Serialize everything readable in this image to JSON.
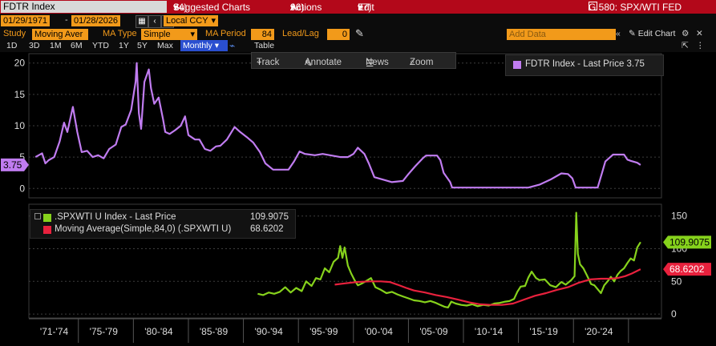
{
  "topbar": {
    "function_box": "FDTR Index",
    "menu1_num": "94)",
    "menu1": "Suggested Charts",
    "menu2_num": "96)",
    "menu2": "Actions",
    "menu3_num": "97)",
    "menu3": "Edit",
    "right_title": "G 580: SPX/WTI FED"
  },
  "controls": {
    "start_date": "01/29/1971",
    "end_date": "01/28/2026",
    "currency": "Local CCY",
    "study_label": "Study",
    "study_value": "Moving Aver",
    "ma_type_label": "MA Type",
    "ma_type_value": "Simple",
    "ma_period_label": "MA Period",
    "ma_period_value": "84",
    "leadlag_label": "Lead/Lag",
    "leadlag_value": "0",
    "add_data_placeholder": "Add Data",
    "edit_chart": "Edit Chart"
  },
  "ranges": {
    "items": [
      "1D",
      "3D",
      "1M",
      "6M",
      "YTD",
      "1Y",
      "5Y",
      "Max"
    ],
    "selected": "Monthly",
    "table": "Table"
  },
  "tools": {
    "track": "Track",
    "annotate": "Annotate",
    "news": "News",
    "zoom": "Zoom"
  },
  "colors": {
    "fdtr": "#c07cf0",
    "spxwti": "#86d21c",
    "ma": "#e8213d",
    "accent": "#f29a1a",
    "topbar": "#b3081a"
  },
  "chart_data": [
    {
      "type": "line",
      "series": [
        {
          "name": "FDTR Index - Last Price 3.75",
          "points": [
            [
              1971.1,
              5.0
            ],
            [
              1971.7,
              5.6
            ],
            [
              1972.0,
              4.0
            ],
            [
              1972.3,
              4.5
            ],
            [
              1972.8,
              5.0
            ],
            [
              1973.3,
              7.5
            ],
            [
              1973.7,
              10.5
            ],
            [
              1974.0,
              9.0
            ],
            [
              1974.5,
              13.0
            ],
            [
              1974.9,
              9.0
            ],
            [
              1975.3,
              5.8
            ],
            [
              1975.8,
              6.0
            ],
            [
              1976.3,
              5.0
            ],
            [
              1976.8,
              5.3
            ],
            [
              1977.3,
              4.8
            ],
            [
              1977.8,
              6.3
            ],
            [
              1978.4,
              7.0
            ],
            [
              1978.9,
              9.8
            ],
            [
              1979.3,
              10.2
            ],
            [
              1979.8,
              12.5
            ],
            [
              1980.2,
              17.0
            ],
            [
              1980.3,
              20.0
            ],
            [
              1980.5,
              12.0
            ],
            [
              1980.7,
              9.5
            ],
            [
              1981.0,
              17.0
            ],
            [
              1981.4,
              19.0
            ],
            [
              1981.6,
              16.0
            ],
            [
              1981.9,
              13.5
            ],
            [
              1982.3,
              14.5
            ],
            [
              1982.7,
              11.0
            ],
            [
              1982.9,
              9.0
            ],
            [
              1983.3,
              8.7
            ],
            [
              1983.8,
              9.3
            ],
            [
              1984.3,
              10.0
            ],
            [
              1984.7,
              11.5
            ],
            [
              1985.0,
              8.5
            ],
            [
              1985.6,
              7.8
            ],
            [
              1986.0,
              7.8
            ],
            [
              1986.5,
              6.3
            ],
            [
              1987.0,
              6.0
            ],
            [
              1987.5,
              6.7
            ],
            [
              1987.9,
              6.8
            ],
            [
              1988.5,
              7.8
            ],
            [
              1989.2,
              9.8
            ],
            [
              1989.7,
              9.0
            ],
            [
              1990.3,
              8.2
            ],
            [
              1990.9,
              7.3
            ],
            [
              1991.5,
              5.8
            ],
            [
              1992.0,
              4.0
            ],
            [
              1992.7,
              3.0
            ],
            [
              1993.5,
              3.0
            ],
            [
              1994.1,
              3.0
            ],
            [
              1994.6,
              4.3
            ],
            [
              1995.1,
              5.9
            ],
            [
              1995.6,
              5.5
            ],
            [
              1996.5,
              5.3
            ],
            [
              1997.2,
              5.5
            ],
            [
              1998.8,
              5.0
            ],
            [
              1999.5,
              5.0
            ],
            [
              2000.0,
              5.5
            ],
            [
              2000.4,
              6.5
            ],
            [
              2001.0,
              5.5
            ],
            [
              2001.4,
              4.0
            ],
            [
              2001.9,
              1.8
            ],
            [
              2002.9,
              1.3
            ],
            [
              2003.5,
              1.0
            ],
            [
              2004.5,
              1.2
            ],
            [
              2005.0,
              2.3
            ],
            [
              2005.6,
              3.5
            ],
            [
              2006.3,
              4.8
            ],
            [
              2006.6,
              5.25
            ],
            [
              2007.6,
              5.25
            ],
            [
              2007.9,
              4.5
            ],
            [
              2008.2,
              2.5
            ],
            [
              2008.8,
              1.0
            ],
            [
              2008.97,
              0.13
            ],
            [
              2015.9,
              0.13
            ],
            [
              2016.9,
              0.6
            ],
            [
              2017.9,
              1.4
            ],
            [
              2018.9,
              2.4
            ],
            [
              2019.5,
              2.3
            ],
            [
              2019.9,
              1.6
            ],
            [
              2020.2,
              0.13
            ],
            [
              2022.2,
              0.13
            ],
            [
              2022.6,
              2.5
            ],
            [
              2022.9,
              4.3
            ],
            [
              2023.6,
              5.4
            ],
            [
              2024.6,
              5.4
            ],
            [
              2024.9,
              4.6
            ],
            [
              2025.2,
              4.4
            ],
            [
              2025.8,
              4.1
            ],
            [
              2026.1,
              3.75
            ]
          ]
        }
      ],
      "last_price_label": "3.75",
      "ylim": [
        -1.5,
        21.5
      ],
      "yticks": [
        0,
        5,
        10,
        15,
        20
      ],
      "legend": "top-right",
      "grid": true
    },
    {
      "type": "line",
      "series": [
        {
          "name": ".SPXWTI U Index - Last Price",
          "last": "109.9075",
          "points": [
            [
              1991.3,
              31
            ],
            [
              1991.8,
              29
            ],
            [
              1992.3,
              33
            ],
            [
              1992.8,
              31
            ],
            [
              1993.3,
              34
            ],
            [
              1993.8,
              41
            ],
            [
              1994.3,
              33
            ],
            [
              1994.8,
              40
            ],
            [
              1995.3,
              35
            ],
            [
              1995.7,
              50
            ],
            [
              1996.2,
              43
            ],
            [
              1996.6,
              55
            ],
            [
              1997.0,
              53
            ],
            [
              1997.4,
              70
            ],
            [
              1997.8,
              64
            ],
            [
              1998.2,
              80
            ],
            [
              1998.6,
              86
            ],
            [
              1998.8,
              104
            ],
            [
              1999.0,
              86
            ],
            [
              1999.2,
              102
            ],
            [
              1999.5,
              74
            ],
            [
              1999.8,
              62
            ],
            [
              2000.1,
              52
            ],
            [
              2000.4,
              44
            ],
            [
              2000.8,
              47
            ],
            [
              2001.2,
              51
            ],
            [
              2001.6,
              55
            ],
            [
              2002.0,
              41
            ],
            [
              2002.5,
              37
            ],
            [
              2003.0,
              32
            ],
            [
              2003.5,
              34
            ],
            [
              2004.0,
              30
            ],
            [
              2004.5,
              27
            ],
            [
              2005.0,
              24
            ],
            [
              2005.5,
              21
            ],
            [
              2006.0,
              20
            ],
            [
              2006.5,
              18
            ],
            [
              2007.0,
              20
            ],
            [
              2007.5,
              17
            ],
            [
              2007.9,
              14
            ],
            [
              2008.3,
              11
            ],
            [
              2008.6,
              10
            ],
            [
              2008.9,
              19
            ],
            [
              2009.3,
              16
            ],
            [
              2009.8,
              14
            ],
            [
              2010.3,
              13
            ],
            [
              2010.8,
              15
            ],
            [
              2011.3,
              12
            ],
            [
              2011.8,
              14
            ],
            [
              2012.3,
              13
            ],
            [
              2012.8,
              16
            ],
            [
              2013.3,
              17
            ],
            [
              2013.8,
              19
            ],
            [
              2014.2,
              20
            ],
            [
              2014.6,
              23
            ],
            [
              2014.9,
              34
            ],
            [
              2015.2,
              42
            ],
            [
              2015.6,
              43
            ],
            [
              2015.9,
              56
            ],
            [
              2016.2,
              65
            ],
            [
              2016.6,
              55
            ],
            [
              2016.9,
              52
            ],
            [
              2017.4,
              53
            ],
            [
              2017.9,
              44
            ],
            [
              2018.4,
              41
            ],
            [
              2018.9,
              49
            ],
            [
              2019.3,
              45
            ],
            [
              2019.8,
              52
            ],
            [
              2020.1,
              58
            ],
            [
              2020.25,
              155
            ],
            [
              2020.4,
              92
            ],
            [
              2020.6,
              76
            ],
            [
              2020.9,
              70
            ],
            [
              2021.2,
              60
            ],
            [
              2021.6,
              46
            ],
            [
              2021.9,
              44
            ],
            [
              2022.2,
              38
            ],
            [
              2022.5,
              32
            ],
            [
              2022.8,
              44
            ],
            [
              2023.1,
              50
            ],
            [
              2023.4,
              57
            ],
            [
              2023.7,
              50
            ],
            [
              2024.0,
              60
            ],
            [
              2024.3,
              66
            ],
            [
              2024.6,
              70
            ],
            [
              2024.9,
              78
            ],
            [
              2025.2,
              85
            ],
            [
              2025.5,
              82
            ],
            [
              2025.8,
              102
            ],
            [
              2026.1,
              110
            ]
          ]
        },
        {
          "name": "Moving Average(Simple,84,0) (.SPXWTI U)",
          "last": "68.6202",
          "points": [
            [
              1998.3,
              45
            ],
            [
              1999.3,
              47
            ],
            [
              2000.3,
              49
            ],
            [
              2001.5,
              50
            ],
            [
              2002.5,
              50
            ],
            [
              2003.3,
              49
            ],
            [
              2004.0,
              45
            ],
            [
              2004.8,
              40
            ],
            [
              2005.5,
              36
            ],
            [
              2006.5,
              33
            ],
            [
              2007.5,
              29
            ],
            [
              2008.5,
              26
            ],
            [
              2009.5,
              22
            ],
            [
              2010.5,
              18
            ],
            [
              2011.5,
              15
            ],
            [
              2012.5,
              14
            ],
            [
              2013.5,
              14
            ],
            [
              2014.5,
              16
            ],
            [
              2015.5,
              22
            ],
            [
              2016.5,
              28
            ],
            [
              2017.5,
              32
            ],
            [
              2018.5,
              37
            ],
            [
              2019.5,
              41
            ],
            [
              2020.5,
              48
            ],
            [
              2021.5,
              53
            ],
            [
              2022.5,
              54
            ],
            [
              2023.3,
              54
            ],
            [
              2024.0,
              55
            ],
            [
              2024.7,
              58
            ],
            [
              2025.3,
              62
            ],
            [
              2026.1,
              68.6
            ]
          ]
        }
      ],
      "ylim": [
        -6,
        168
      ],
      "yticks": [
        0,
        50,
        100,
        150
      ],
      "legend": "top-left",
      "grid": true
    }
  ],
  "xaxis": {
    "range": [
      1970.5,
      2028.0
    ],
    "labels": [
      {
        "text": "'71-'74",
        "at": 1972.8
      },
      {
        "text": "'75-'79",
        "at": 1977.3
      },
      {
        "text": "'80-'84",
        "at": 1982.3
      },
      {
        "text": "'85-'89",
        "at": 1987.3
      },
      {
        "text": "'90-'94",
        "at": 1992.3
      },
      {
        "text": "'95-'99",
        "at": 1997.3
      },
      {
        "text": "'00-'04",
        "at": 2002.3
      },
      {
        "text": "'05-'09",
        "at": 2007.3
      },
      {
        "text": "'10-'14",
        "at": 2012.3
      },
      {
        "text": "'15-'19",
        "at": 2017.3
      },
      {
        "text": "'20-'24",
        "at": 2022.3
      }
    ],
    "dividers": [
      1975.0,
      1980.0,
      1985.0,
      1990.0,
      1995.0,
      2000.0,
      2005.0,
      2010.0,
      2015.0,
      2020.0,
      2025.0
    ]
  }
}
